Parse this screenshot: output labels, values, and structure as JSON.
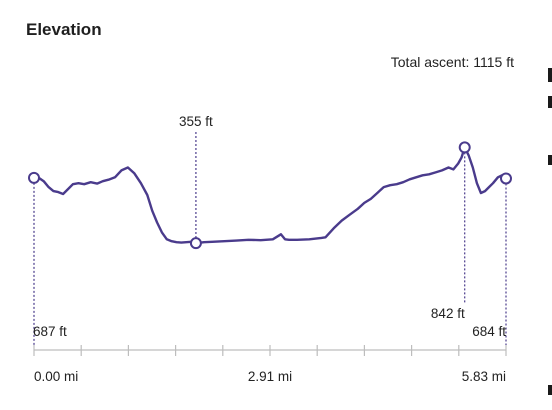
{
  "header": {
    "title": "Elevation",
    "total_ascent": "Total ascent: 1115 ft"
  },
  "markers": [
    {
      "label": "687 ft",
      "distance_mi": 0.0,
      "elevation_ft": 687
    },
    {
      "label": "355 ft",
      "distance_mi": 2.0,
      "elevation_ft": 355
    },
    {
      "label": "842 ft",
      "distance_mi": 5.32,
      "elevation_ft": 842
    },
    {
      "label": "684 ft",
      "distance_mi": 5.83,
      "elevation_ft": 684
    }
  ],
  "x_axis": {
    "labels": [
      "0.00 mi",
      "2.91 mi",
      "5.83 mi"
    ],
    "max_mi": 5.83,
    "tick_count": 11
  },
  "chart_data": {
    "type": "line",
    "title": "Elevation",
    "xlabel": "",
    "ylabel": "",
    "xlim": [
      0,
      5.83
    ],
    "ylim": [
      300,
      900
    ],
    "series": [
      {
        "color": "#4a3b8c",
        "x": [
          0.0,
          0.05,
          0.12,
          0.18,
          0.24,
          0.3,
          0.36,
          0.42,
          0.48,
          0.55,
          0.62,
          0.7,
          0.78,
          0.85,
          0.92,
          1.0,
          1.08,
          1.16,
          1.24,
          1.32,
          1.4,
          1.46,
          1.52,
          1.58,
          1.64,
          1.7,
          1.76,
          1.82,
          1.88,
          1.94,
          2.0,
          2.1,
          2.2,
          2.35,
          2.5,
          2.65,
          2.8,
          2.95,
          3.05,
          3.1,
          3.15,
          3.25,
          3.4,
          3.55,
          3.6,
          3.7,
          3.8,
          3.9,
          4.0,
          4.08,
          4.16,
          4.24,
          4.32,
          4.4,
          4.48,
          4.56,
          4.64,
          4.72,
          4.8,
          4.88,
          4.96,
          5.04,
          5.12,
          5.18,
          5.24,
          5.28,
          5.32,
          5.37,
          5.42,
          5.47,
          5.52,
          5.57,
          5.62,
          5.67,
          5.73,
          5.78,
          5.83
        ],
        "y": [
          687,
          690,
          670,
          640,
          620,
          615,
          605,
          630,
          655,
          660,
          655,
          665,
          658,
          670,
          678,
          690,
          725,
          740,
          710,
          660,
          600,
          520,
          460,
          410,
          375,
          365,
          360,
          358,
          360,
          362,
          355,
          360,
          362,
          365,
          368,
          372,
          370,
          375,
          400,
          375,
          372,
          372,
          375,
          382,
          385,
          430,
          470,
          500,
          530,
          560,
          580,
          610,
          640,
          650,
          655,
          665,
          680,
          690,
          700,
          705,
          715,
          725,
          740,
          730,
          760,
          790,
          842,
          800,
          740,
          660,
          610,
          620,
          640,
          660,
          690,
          700,
          684
        ]
      }
    ]
  }
}
